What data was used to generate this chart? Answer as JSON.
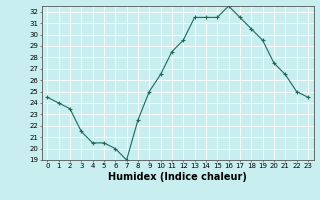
{
  "x": [
    0,
    1,
    2,
    3,
    4,
    5,
    6,
    7,
    8,
    9,
    10,
    11,
    12,
    13,
    14,
    15,
    16,
    17,
    18,
    19,
    20,
    21,
    22,
    23
  ],
  "y": [
    24.5,
    24.0,
    23.5,
    21.5,
    20.5,
    20.5,
    20.0,
    19.0,
    22.5,
    25.0,
    26.5,
    28.5,
    29.5,
    31.5,
    31.5,
    31.5,
    32.5,
    31.5,
    30.5,
    29.5,
    27.5,
    26.5,
    25.0,
    24.5
  ],
  "line_color": "#1a6b5e",
  "marker": "+",
  "marker_size": 3,
  "linewidth": 0.8,
  "markeredgewidth": 0.8,
  "xlabel": "Humidex (Indice chaleur)",
  "xlim": [
    -0.5,
    23.5
  ],
  "ylim": [
    19,
    32.5
  ],
  "yticks": [
    19,
    20,
    21,
    22,
    23,
    24,
    25,
    26,
    27,
    28,
    29,
    30,
    31,
    32
  ],
  "xticks": [
    0,
    1,
    2,
    3,
    4,
    5,
    6,
    7,
    8,
    9,
    10,
    11,
    12,
    13,
    14,
    15,
    16,
    17,
    18,
    19,
    20,
    21,
    22,
    23
  ],
  "bg_color": "#c8eef0",
  "grid_color": "#ffffff",
  "tick_label_fontsize": 5.0,
  "xlabel_fontsize": 7.0,
  "xlabel_fontweight": "bold"
}
